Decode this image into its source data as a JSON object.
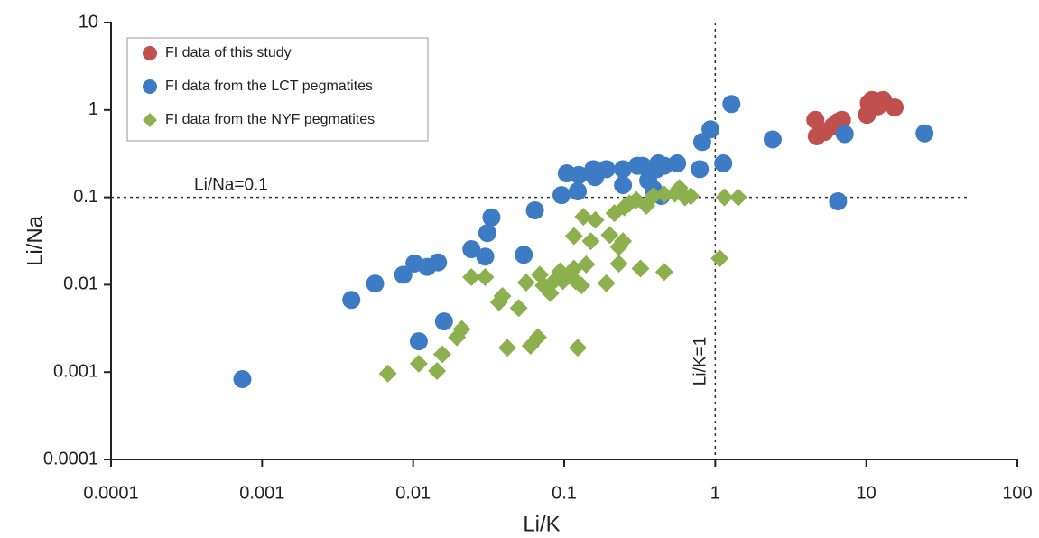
{
  "chart_data": {
    "type": "scatter",
    "x_label": "Li/K",
    "y_label": "Li/Na",
    "xscale": "log",
    "yscale": "log",
    "xlim": [
      0.0001,
      100
    ],
    "ylim": [
      0.0001,
      10
    ],
    "xticks": [
      0.0001,
      0.001,
      0.01,
      0.1,
      1,
      10,
      100
    ],
    "yticks": [
      0.0001,
      0.001,
      0.01,
      0.1,
      1,
      10
    ],
    "legend": "upper left",
    "hlines": [
      {
        "value": 0.1,
        "label": "Li/Na=0.1"
      }
    ],
    "vlines": [
      {
        "value": 1,
        "label": "Li/K=1"
      }
    ],
    "series": [
      {
        "name": "FI data of this study",
        "color": "#c0504d",
        "marker": "circle",
        "x": [
          4.6,
          4.7,
          5.3,
          6.0,
          6.5,
          6.9,
          10.1,
          10.4,
          10.9,
          11.9,
          12.9,
          15.4
        ],
        "values": [
          0.77,
          0.5,
          0.56,
          0.65,
          0.73,
          0.77,
          0.88,
          1.2,
          1.3,
          1.1,
          1.3,
          1.07
        ]
      },
      {
        "name": "FI data from the LCT pegmatites",
        "color": "#3d7cc4",
        "marker": "circle",
        "x": [
          0.00074,
          0.0039,
          0.0056,
          0.0086,
          0.0102,
          0.0124,
          0.0146,
          0.0109,
          0.016,
          0.0243,
          0.03,
          0.031,
          0.033,
          0.054,
          0.064,
          0.096,
          0.104,
          0.125,
          0.123,
          0.156,
          0.16,
          0.19,
          0.245,
          0.245,
          0.305,
          0.33,
          0.36,
          0.41,
          0.42,
          0.46,
          0.39,
          0.44,
          0.56,
          0.79,
          0.82,
          0.93,
          1.13,
          1.28,
          2.4,
          6.5,
          7.2,
          24.3
        ],
        "values": [
          0.00083,
          0.0067,
          0.0103,
          0.013,
          0.0175,
          0.016,
          0.018,
          0.00225,
          0.0038,
          0.0255,
          0.021,
          0.039,
          0.059,
          0.022,
          0.071,
          0.106,
          0.188,
          0.18,
          0.117,
          0.21,
          0.17,
          0.21,
          0.138,
          0.21,
          0.23,
          0.23,
          0.156,
          0.21,
          0.245,
          0.23,
          0.123,
          0.104,
          0.245,
          0.21,
          0.43,
          0.6,
          0.245,
          1.17,
          0.46,
          0.09,
          0.53,
          0.54
        ]
      },
      {
        "name": "FI data from the NYF pegmatites",
        "color": "#8db04f",
        "marker": "diamond",
        "x": [
          0.0068,
          0.0109,
          0.0144,
          0.0156,
          0.0195,
          0.021,
          0.0243,
          0.03,
          0.037,
          0.039,
          0.042,
          0.05,
          0.056,
          0.06,
          0.067,
          0.069,
          0.073,
          0.081,
          0.087,
          0.094,
          0.098,
          0.106,
          0.116,
          0.119,
          0.123,
          0.116,
          0.13,
          0.134,
          0.14,
          0.15,
          0.161,
          0.19,
          0.2,
          0.215,
          0.23,
          0.23,
          0.245,
          0.25,
          0.27,
          0.3,
          0.32,
          0.35,
          0.39,
          0.46,
          0.46,
          0.54,
          0.58,
          0.63,
          0.69,
          1.07,
          1.15,
          1.42
        ],
        "values": [
          0.00096,
          0.00125,
          0.00103,
          0.0016,
          0.0025,
          0.0031,
          0.0122,
          0.0122,
          0.0063,
          0.0074,
          0.0019,
          0.0054,
          0.0106,
          0.002,
          0.0025,
          0.013,
          0.0098,
          0.008,
          0.0113,
          0.0142,
          0.011,
          0.0125,
          0.0153,
          0.011,
          0.0019,
          0.036,
          0.0098,
          0.06,
          0.0171,
          0.0315,
          0.055,
          0.0104,
          0.037,
          0.066,
          0.027,
          0.0174,
          0.0315,
          0.077,
          0.085,
          0.093,
          0.0153,
          0.08,
          0.104,
          0.014,
          0.108,
          0.11,
          0.128,
          0.1,
          0.103,
          0.02,
          0.1,
          0.1
        ]
      }
    ]
  }
}
